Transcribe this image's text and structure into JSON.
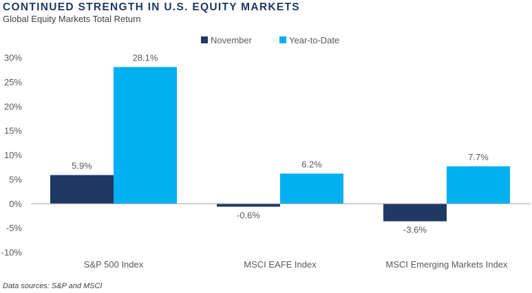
{
  "chart_data": {
    "type": "bar",
    "title": "CONTINUED STRENGTH IN U.S. EQUITY MARKETS",
    "subtitle": "Global Equity Markets Total Return",
    "categories": [
      "S&P 500 Index",
      "MSCI EAFE Index",
      "MSCI Emerging Markets Index"
    ],
    "series": [
      {
        "name": "November",
        "values": [
          5.9,
          -0.6,
          -3.6
        ],
        "labels": [
          "5.9%",
          "-0.6%",
          "-3.6%"
        ],
        "color": "#203864"
      },
      {
        "name": "Year-to-Date",
        "values": [
          28.1,
          6.2,
          7.7
        ],
        "labels": [
          "28.1%",
          "6.2%",
          "7.7%"
        ],
        "color": "#00b0f0"
      }
    ],
    "ylim": [
      -10,
      30
    ],
    "yticks": [
      -10,
      -5,
      0,
      5,
      10,
      15,
      20,
      25,
      30
    ],
    "ytick_labels": [
      "-10%",
      "-5%",
      "0%",
      "5%",
      "10%",
      "15%",
      "20%",
      "25%",
      "30%"
    ],
    "legend_position": "top-center",
    "grid": false,
    "source": "Data sources: S&P and MSCI"
  }
}
